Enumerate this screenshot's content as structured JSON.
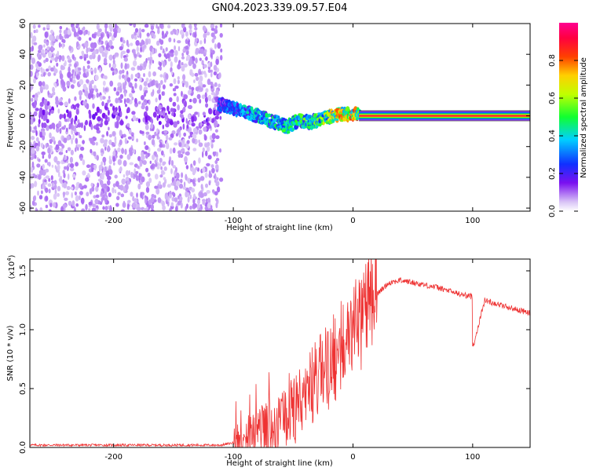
{
  "title": "GN04.2023.339.09.57.E04",
  "colors": {
    "snr_line": "#ee3333",
    "spectrogram_low": "#d9c6f7",
    "spectrogram_mid": "#6a12f0",
    "spectrogram_line": "#ff2d2d"
  },
  "colorbar": {
    "label": "Normalized spectral amplitude",
    "ticks": [
      "0.0",
      "0.2",
      "0.4",
      "0.6",
      "0.8"
    ],
    "tick_values": [
      0.0,
      0.2,
      0.4,
      0.6,
      0.8
    ],
    "range": [
      0,
      1
    ],
    "colormap": "rainbow (white-violet-blue-cyan-green-yellow-red-magenta)"
  },
  "chart_data": [
    {
      "type": "heatmap",
      "xlabel": "Height of straight line (km)",
      "ylabel": "Frequency (Hz)",
      "xlim": [
        -270,
        148
      ],
      "ylim": [
        -62,
        60
      ],
      "x_ticks": [
        "-200",
        "-100",
        "0",
        "100"
      ],
      "x_tick_values": [
        -200,
        -100,
        0,
        100
      ],
      "y_ticks": [
        "60",
        "40",
        "20",
        "0",
        "-20",
        "-40",
        "-60"
      ],
      "y_tick_values": [
        60,
        40,
        20,
        0,
        -20,
        -40,
        -60
      ],
      "noise_region_x": [
        -270,
        -110
      ],
      "ridge": {
        "x": [
          -110,
          -90,
          -70,
          -55,
          -45,
          -35,
          -25,
          -15,
          -5,
          5,
          20,
          60,
          100,
          148
        ],
        "frequency": [
          7,
          3,
          -3,
          -7,
          -3,
          -4,
          -2,
          0,
          1,
          1,
          0,
          0,
          0,
          0
        ],
        "amplitude": [
          0.3,
          0.45,
          0.5,
          0.55,
          0.55,
          0.6,
          0.7,
          0.8,
          0.85,
          0.9,
          0.95,
          0.95,
          0.95,
          0.95
        ]
      },
      "grid": false
    },
    {
      "type": "line",
      "xlabel": "Height of straight line (km)",
      "ylabel": "SNR (10 * v/v)",
      "yscale_label": "(x10",
      "yscale_exp": "4",
      "xlim": [
        -270,
        148
      ],
      "ylim": [
        0,
        1.6
      ],
      "x_ticks": [
        "-200",
        "-100",
        "0",
        "100"
      ],
      "x_tick_values": [
        -200,
        -100,
        0,
        100
      ],
      "y_ticks": [
        "0.0",
        "0.5",
        "1.0",
        "1.5"
      ],
      "y_tick_values": [
        0.0,
        0.5,
        1.0,
        1.5
      ],
      "series": [
        {
          "x": [
            -270,
            -240,
            -200,
            -150,
            -110,
            -100,
            -90,
            -80,
            -70,
            -60,
            -50,
            -40,
            -30,
            -20,
            -10,
            -5,
            0,
            5,
            10,
            20,
            30,
            40,
            50,
            60,
            70,
            80,
            90,
            100,
            101,
            110,
            120,
            130,
            148
          ],
          "y": [
            0.02,
            0.02,
            0.02,
            0.02,
            0.02,
            0.04,
            0.08,
            0.12,
            0.18,
            0.2,
            0.3,
            0.45,
            0.6,
            0.7,
            0.85,
            0.95,
            1.0,
            1.05,
            1.15,
            1.3,
            1.4,
            1.42,
            1.4,
            1.38,
            1.36,
            1.33,
            1.3,
            1.28,
            0.88,
            1.25,
            1.22,
            1.19,
            1.14
          ]
        }
      ],
      "grid": false
    }
  ]
}
